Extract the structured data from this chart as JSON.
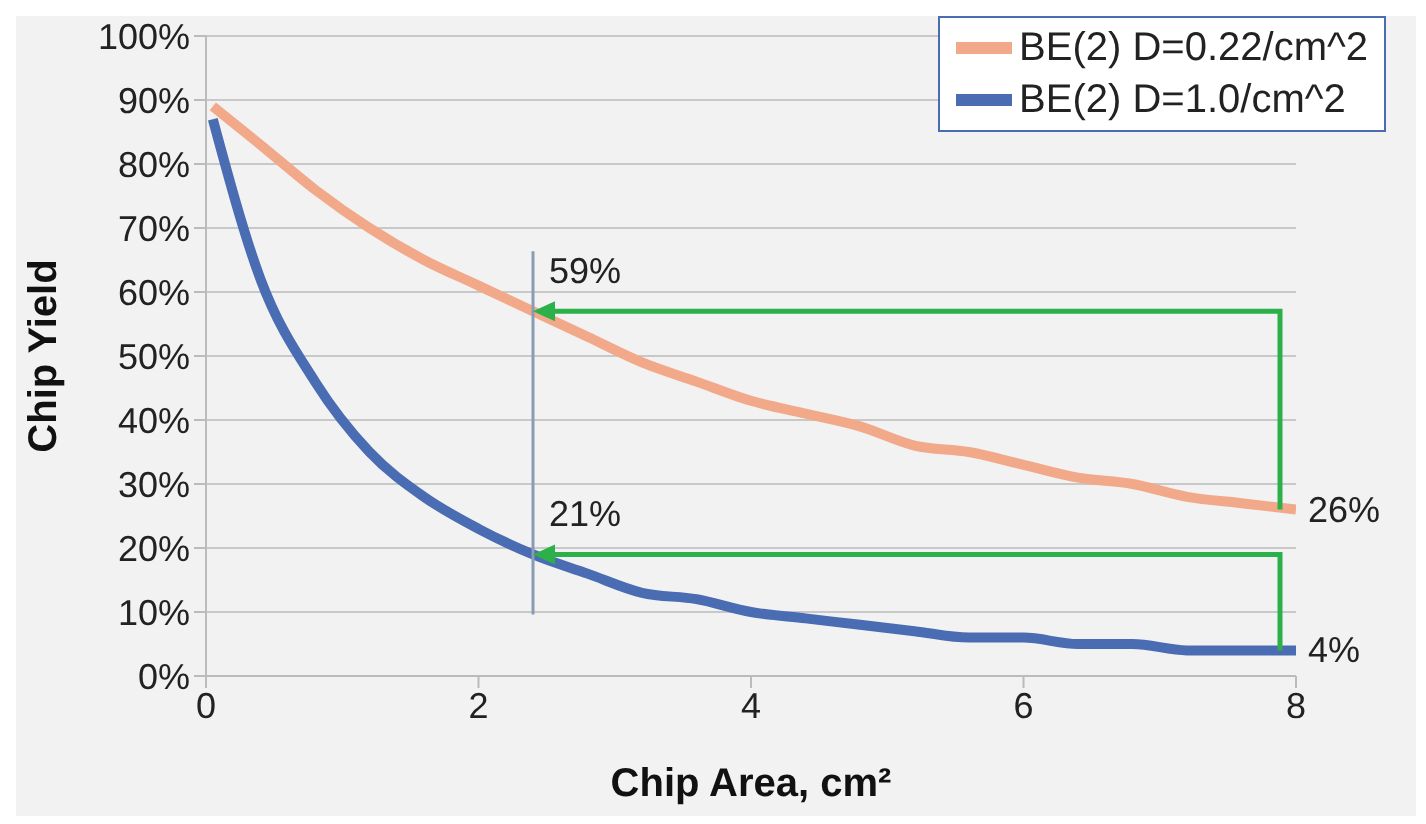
{
  "chart_data": {
    "type": "line",
    "xlabel": "Chip Area, cm²",
    "ylabel": "Chip Yield",
    "x": [
      0.05,
      0.4,
      0.8,
      1.2,
      1.6,
      2.0,
      2.4,
      2.8,
      3.2,
      3.6,
      4.0,
      4.4,
      4.8,
      5.2,
      5.6,
      6.0,
      6.4,
      6.8,
      7.2,
      7.6,
      8.0
    ],
    "series": [
      {
        "name": "BE(2) D=0.22/cm^2",
        "color": "#f2a98a",
        "values": [
          89,
          83,
          76,
          70,
          65,
          61,
          57,
          53,
          49,
          46,
          43,
          41,
          39,
          36,
          35,
          33,
          31,
          30,
          28,
          27,
          26
        ]
      },
      {
        "name": "BE(2) D=1.0/cm^2",
        "color": "#4a6cb3",
        "values": [
          87,
          62,
          46,
          35,
          28,
          23,
          19,
          16,
          13,
          12,
          10,
          9,
          8,
          7,
          6,
          6,
          5,
          5,
          4,
          4,
          4
        ]
      }
    ],
    "xlim": [
      0,
      8
    ],
    "xticks": [
      0,
      2,
      4,
      6,
      8
    ],
    "ylim": [
      0,
      100
    ],
    "yticks": [
      {
        "value": 0,
        "label": "0%"
      },
      {
        "value": 10,
        "label": "10%"
      },
      {
        "value": 20,
        "label": "20%"
      },
      {
        "value": 30,
        "label": "30%"
      },
      {
        "value": 40,
        "label": "40%"
      },
      {
        "value": 50,
        "label": "50%"
      },
      {
        "value": 60,
        "label": "60%"
      },
      {
        "value": 70,
        "label": "70%"
      },
      {
        "value": 80,
        "label": "80%"
      },
      {
        "value": 90,
        "label": "90%"
      },
      {
        "value": 100,
        "label": "100%"
      }
    ],
    "grid": "y",
    "legend": "top right",
    "marker": "none",
    "line_style": "solid",
    "ref_lines": [
      {
        "axis": "x",
        "value": 2.4,
        "color": "#8a9bb5"
      }
    ],
    "annotations": [
      "59%",
      "21%",
      "26%",
      "4%"
    ]
  }
}
